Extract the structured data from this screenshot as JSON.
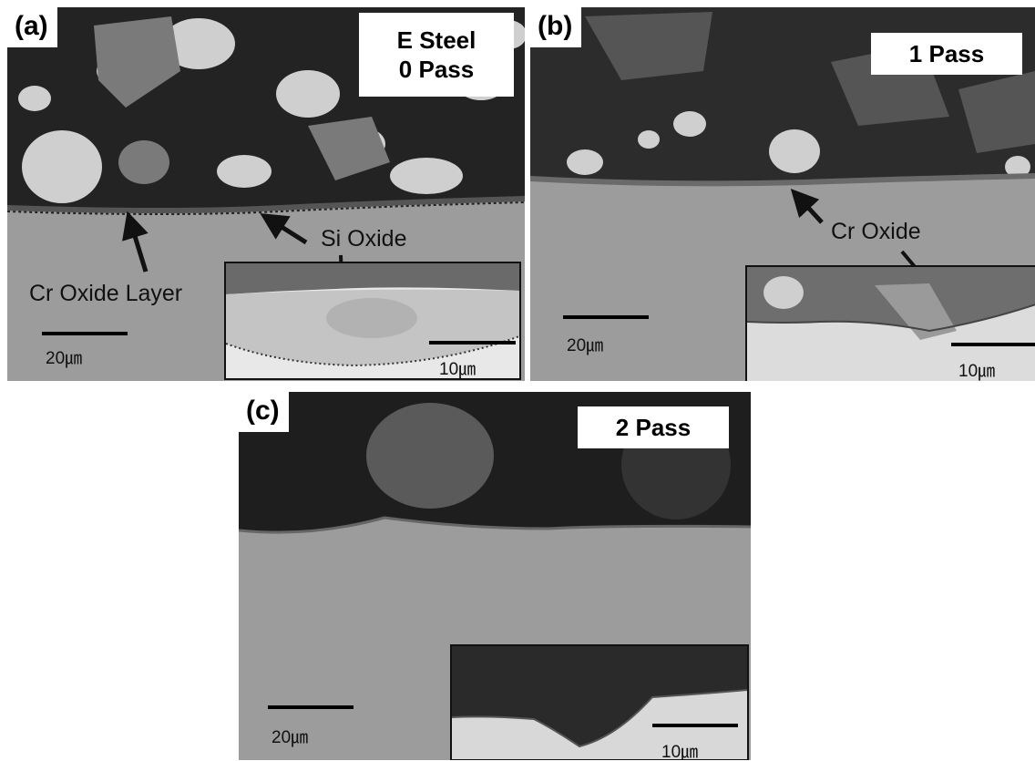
{
  "panels": {
    "a": {
      "letter": "(a)",
      "title_line1": "E Steel",
      "title_line2": "0 Pass",
      "label_cr": "Cr Oxide Layer",
      "label_si": "Si Oxide",
      "scale_main": "20㎛",
      "scale_inset": "10㎛"
    },
    "b": {
      "letter": "(b)",
      "title": "1 Pass",
      "label_cr": "Cr Oxide",
      "scale_main": "20㎛",
      "scale_inset": "10㎛"
    },
    "c": {
      "letter": "(c)",
      "title": "2 Pass",
      "scale_main": "20㎛",
      "scale_inset": "10㎛"
    }
  },
  "colors": {
    "substrate": "#9c9c9c",
    "oxide_dark": "#1e1e1e",
    "particle_light": "#d0d0d0",
    "arrow": "#111111"
  }
}
